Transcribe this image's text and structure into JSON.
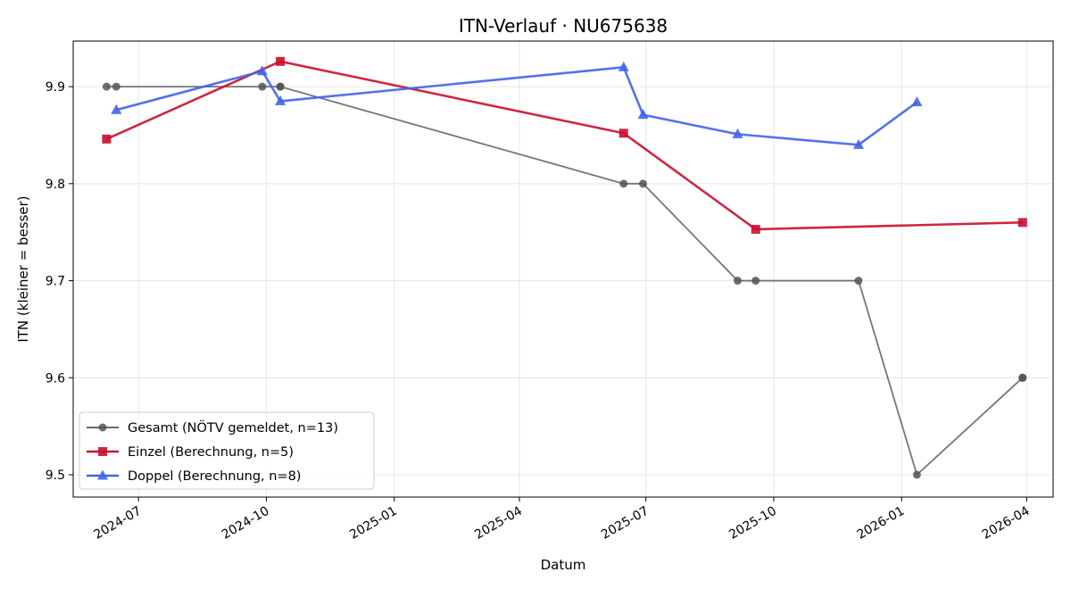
{
  "chart_data": {
    "type": "line",
    "title": "ITN-Verlauf · NU675638",
    "xlabel": "Datum",
    "ylabel": "ITN  (kleiner = besser)",
    "x_range": [
      "2024-05-15",
      "2026-04-20"
    ],
    "ylim": [
      9.477,
      9.947
    ],
    "grid": true,
    "legend_position": "lower-left",
    "x_ticks": [
      "2024-07",
      "2024-10",
      "2025-01",
      "2025-04",
      "2025-07",
      "2025-10",
      "2026-01",
      "2026-04"
    ],
    "y_ticks": [
      "9.5",
      "9.6",
      "9.7",
      "9.8",
      "9.9"
    ],
    "series": [
      {
        "name": "Gesamt (NÖTV gemeldet, n=13)",
        "color": "#555555",
        "marker": "circle",
        "x": [
          "2024-06-08",
          "2024-06-15",
          "2024-09-28",
          "2024-10-11",
          "2024-10-11",
          "2025-06-15",
          "2025-06-29",
          "2025-09-05",
          "2025-09-18",
          "2025-12-01",
          "2026-01-12",
          "2026-03-29",
          "2026-03-29"
        ],
        "y": [
          9.9,
          9.9,
          9.9,
          9.9,
          9.9,
          9.8,
          9.8,
          9.7,
          9.7,
          9.7,
          9.5,
          9.6,
          9.6
        ]
      },
      {
        "name": "Einzel (Berechnung, n=5)",
        "color": "#c8102e",
        "marker": "square",
        "x": [
          "2024-06-08",
          "2024-10-11",
          "2025-06-15",
          "2025-09-18",
          "2026-03-29"
        ],
        "y": [
          9.846,
          9.926,
          9.852,
          9.753,
          9.76
        ]
      },
      {
        "name": "Doppel (Berechnung, n=8)",
        "color": "#4263eb",
        "marker": "triangle",
        "x": [
          "2024-06-15",
          "2024-09-28",
          "2024-10-11",
          "2025-06-15",
          "2025-06-29",
          "2025-09-05",
          "2025-12-01",
          "2026-01-12"
        ],
        "y": [
          9.876,
          9.916,
          9.885,
          9.92,
          9.871,
          9.851,
          9.84,
          9.884
        ]
      }
    ]
  }
}
